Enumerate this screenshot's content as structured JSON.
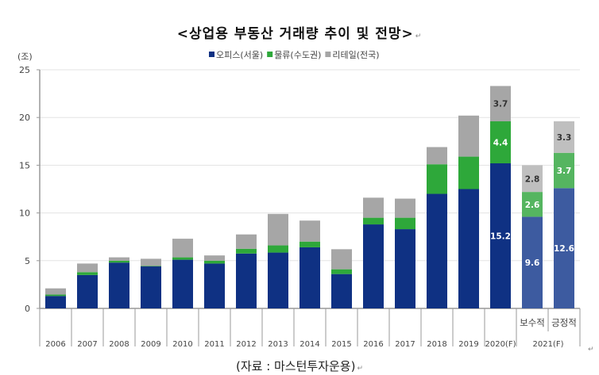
{
  "title": "<상업용 부동산 거래량 추이 및 전망>",
  "source": "(자료 : 마스턴투자운용)",
  "chart_data": {
    "type": "bar",
    "stacked": true,
    "ylabel": "(조)",
    "ylim": [
      0,
      25
    ],
    "yticks": [
      0,
      5,
      10,
      15,
      20,
      25
    ],
    "grid": true,
    "legend_position": "top-center",
    "categories": [
      "2006",
      "2007",
      "2008",
      "2009",
      "2010",
      "2011",
      "2012",
      "2013",
      "2014",
      "2015",
      "2016",
      "2017",
      "2018",
      "2019",
      "2020(F)",
      "보수적",
      "긍정적"
    ],
    "category_groups": [
      {
        "label": "2021(F)",
        "members": [
          "보수적",
          "긍정적"
        ]
      }
    ],
    "series": [
      {
        "name": "오피스(서울)",
        "color": "#0f3183",
        "forecast_color": "#3d5ba0",
        "values": [
          1.3,
          3.5,
          4.8,
          4.4,
          5.1,
          4.7,
          5.75,
          5.85,
          6.4,
          3.6,
          8.8,
          8.3,
          12.0,
          12.5,
          15.2,
          9.6,
          12.6
        ],
        "labels": {
          "14": "15.2",
          "15": "9.6",
          "16": "12.6"
        }
      },
      {
        "name": "물류(수도권)",
        "color": "#2ea83a",
        "forecast_color": "#55b560",
        "values": [
          0.15,
          0.3,
          0.2,
          0.05,
          0.25,
          0.3,
          0.5,
          0.75,
          0.6,
          0.5,
          0.7,
          1.2,
          3.1,
          3.4,
          4.4,
          2.6,
          3.7
        ],
        "labels": {
          "14": "4.4",
          "15": "2.6",
          "16": "3.7"
        }
      },
      {
        "name": "리테일(전국)",
        "color": "#a6a6a6",
        "forecast_color": "#bfbfbf",
        "values": [
          0.65,
          0.9,
          0.35,
          0.75,
          1.95,
          0.55,
          1.5,
          3.3,
          2.2,
          2.1,
          2.1,
          2.0,
          1.8,
          4.3,
          3.7,
          2.8,
          3.3
        ],
        "labels": {
          "14": "3.7",
          "15": "2.8",
          "16": "3.3"
        }
      }
    ]
  }
}
